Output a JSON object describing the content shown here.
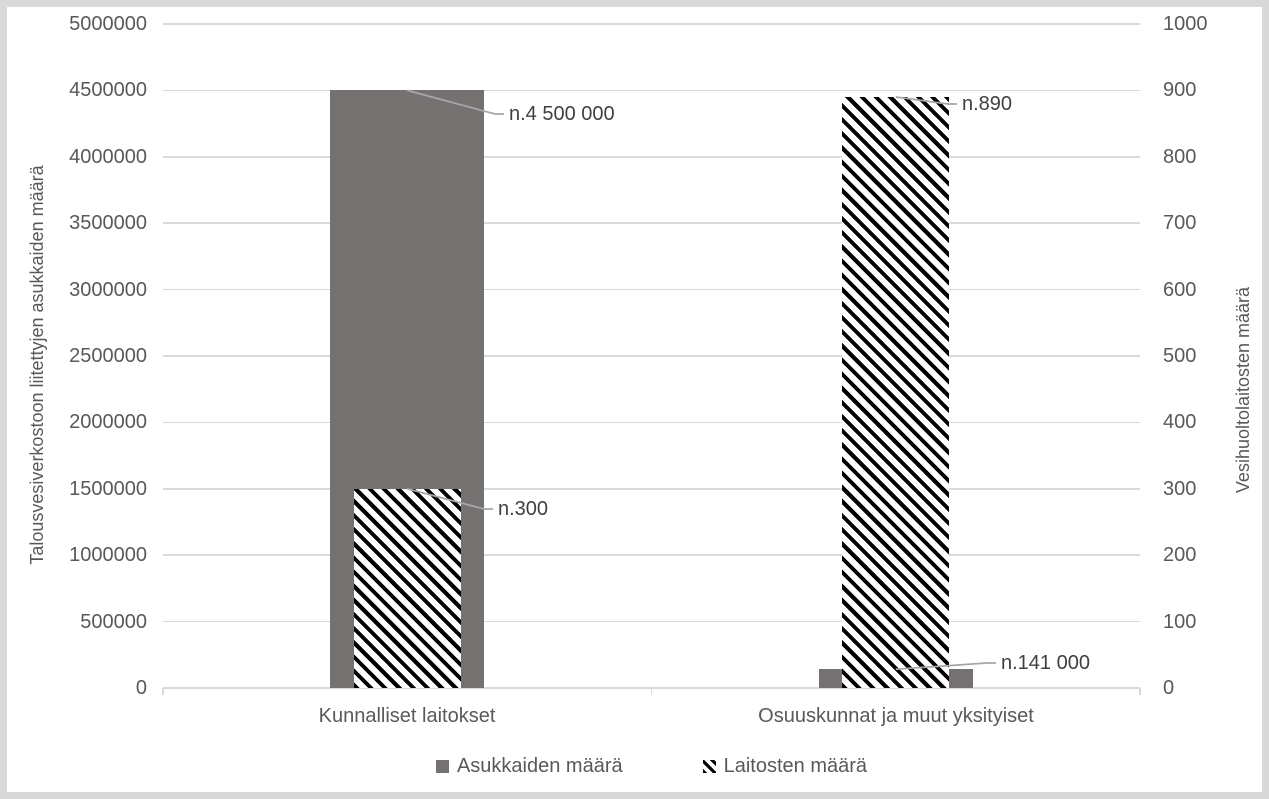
{
  "chart_data": {
    "type": "bar",
    "subtype": "dual-axis-overlapped-columns",
    "categories": [
      "Kunnalliset laitokset",
      "Osuuskunnat ja muut yksityiset"
    ],
    "series": [
      {
        "name": "Asukkaiden määrä",
        "axis": "left",
        "style": "solid-gray",
        "color": "#767171",
        "values": [
          4500000,
          141000
        ]
      },
      {
        "name": "Laitosten määrä",
        "axis": "right",
        "style": "diagonal-hatch-black",
        "values": [
          300,
          890
        ]
      }
    ],
    "left_axis": {
      "title": "Talousvesiverkostoon  liitettyjen asukkaiden määrä",
      "min": 0,
      "max": 5000000,
      "step": 500000,
      "tick_labels": [
        "0",
        "500000",
        "1000000",
        "1500000",
        "2000000",
        "2500000",
        "3000000",
        "3500000",
        "4000000",
        "4500000",
        "5000000"
      ]
    },
    "right_axis": {
      "title": "Vesihuoltolaitosten määrä",
      "min": 0,
      "max": 1000,
      "step": 100,
      "tick_labels": [
        "0",
        "100",
        "200",
        "300",
        "400",
        "500",
        "600",
        "700",
        "800",
        "900",
        "1000"
      ]
    },
    "callouts": [
      {
        "series": "Asukkaiden määrä",
        "category": "Kunnalliset laitokset",
        "label": "n.4 500 000",
        "value": 4500000
      },
      {
        "series": "Laitosten määrä",
        "category": "Kunnalliset laitokset",
        "label": "n.300",
        "value": 300
      },
      {
        "series": "Laitosten määrä",
        "category": "Osuuskunnat ja muut yksityiset",
        "label": "n.890",
        "value": 890
      },
      {
        "series": "Asukkaiden määrä",
        "category": "Osuuskunnat ja muut yksityiset",
        "label": "n.141 000",
        "value": 141000
      }
    ],
    "legend": {
      "position": "bottom",
      "entries": [
        "Asukkaiden määrä",
        "Laitosten määrä"
      ]
    },
    "grid": "horizontal",
    "colors": {
      "bar_gray": "#767171",
      "hatch_fg": "#000000",
      "hatch_bg": "#ffffff",
      "gridline": "#d9d9d9",
      "axis_text": "#595959",
      "data_label_text": "#404040",
      "leader_line": "#a6a6a6",
      "frame": "#d9d9d9",
      "background": "#ffffff"
    }
  }
}
